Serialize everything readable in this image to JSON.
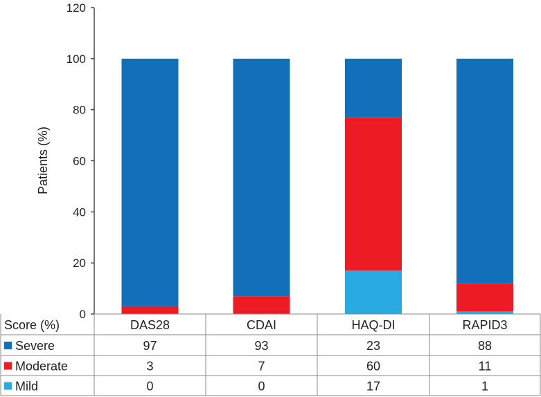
{
  "chart_data": {
    "type": "bar",
    "stacked": true,
    "title": "",
    "xlabel": "",
    "ylabel": "Patients (%)",
    "ylim": [
      0,
      120
    ],
    "yticks": [
      0,
      20,
      40,
      60,
      80,
      100,
      120
    ],
    "grid": false,
    "categories": [
      "DAS28",
      "CDAI",
      "HAQ-DI",
      "RAPID3"
    ],
    "table_header": "Score (%)",
    "series": [
      {
        "name": "Mild",
        "color": "#29abe2",
        "values": [
          0,
          0,
          17,
          1
        ]
      },
      {
        "name": "Moderate",
        "color": "#ed1c24",
        "values": [
          3,
          7,
          60,
          11
        ]
      },
      {
        "name": "Severe",
        "color": "#1170b9",
        "values": [
          97,
          93,
          23,
          88
        ]
      }
    ],
    "table_rows": [
      "Severe",
      "Moderate",
      "Mild"
    ]
  }
}
